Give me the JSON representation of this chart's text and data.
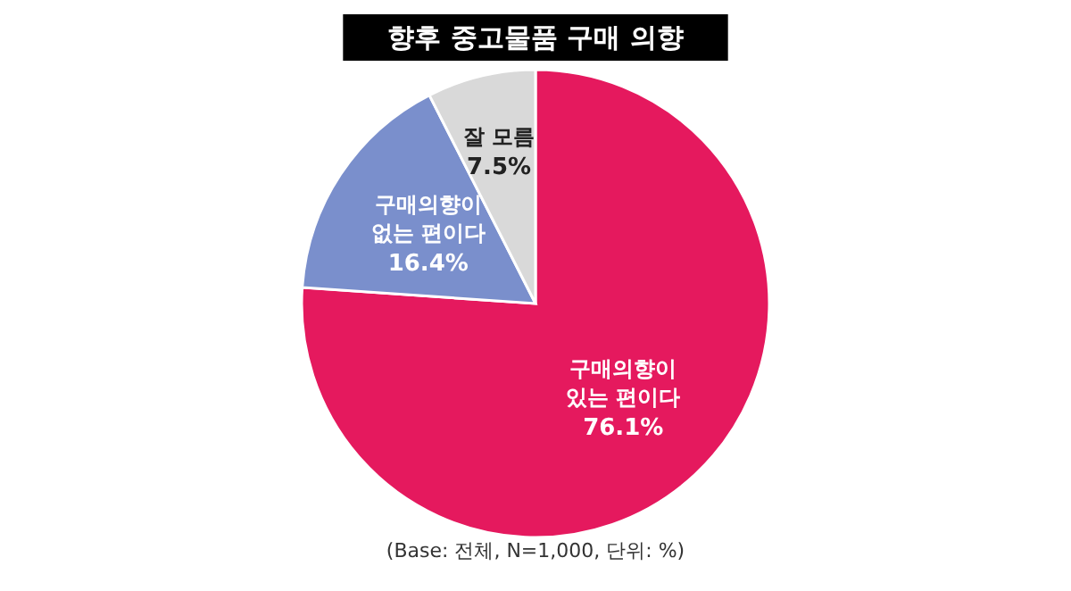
{
  "chart_data": {
    "type": "pie",
    "title": "향후 중고물품 구매 의향",
    "categories": [
      "구매의향이 있는 편이다",
      "구매의향이 없는 편이다",
      "잘 모름"
    ],
    "values": [
      76.1,
      16.4,
      7.5
    ],
    "value_labels": [
      "76.1%",
      "16.4%",
      "7.5%"
    ],
    "colors": [
      "#e5195e",
      "#7a8fcc",
      "#d9d9d9"
    ],
    "annotations": [
      "(Base: 전체, N=1,000, 단위: %)"
    ]
  }
}
